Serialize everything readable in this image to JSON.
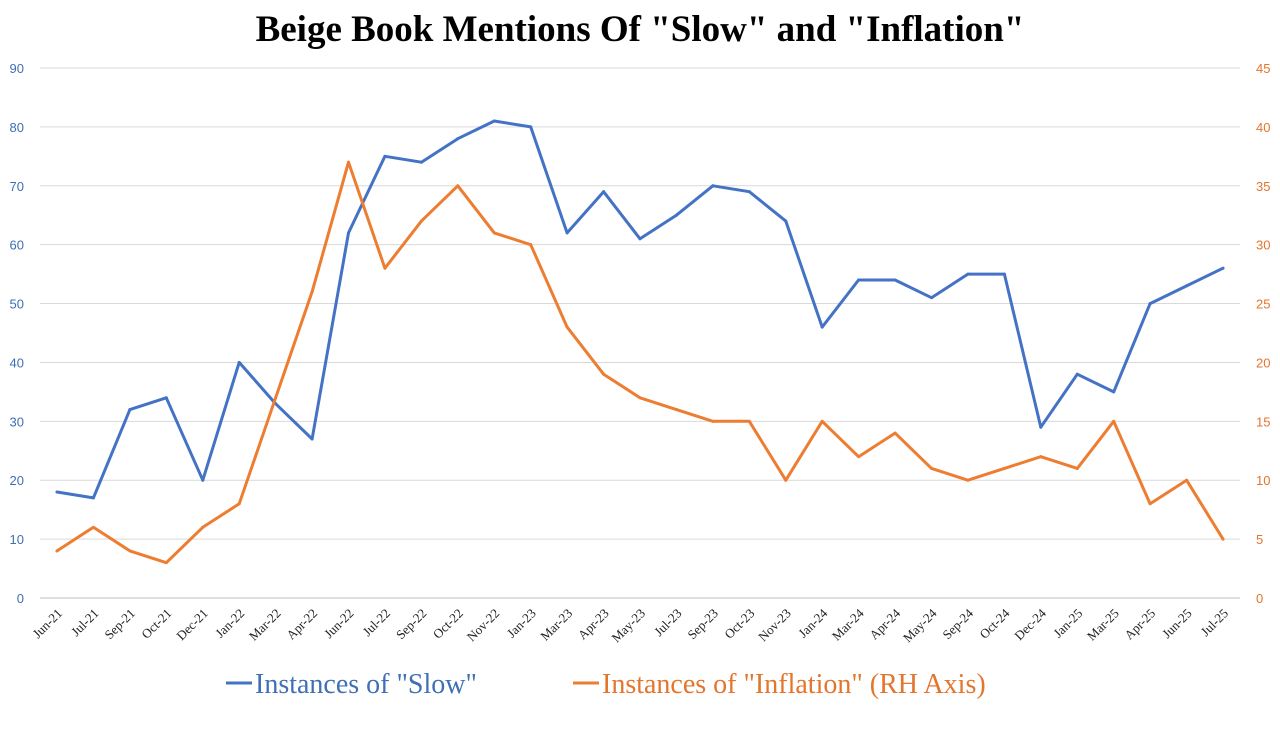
{
  "chart_data": {
    "type": "line",
    "title": "Beige Book Mentions Of \"Slow\" and \"Inflation\"",
    "categories": [
      "Jun-21",
      "Jul-21",
      "Sep-21",
      "Oct-21",
      "Dec-21",
      "Jan-22",
      "Mar-22",
      "Apr-22",
      "Jun-22",
      "Jul-22",
      "Sep-22",
      "Oct-22",
      "Nov-22",
      "Jan-23",
      "Mar-23",
      "Apr-23",
      "May-23",
      "Jul-23",
      "Sep-23",
      "Oct-23",
      "Nov-23",
      "Jan-24",
      "Mar-24",
      "Apr-24",
      "May-24",
      "Sep-24",
      "Oct-24",
      "Dec-24",
      "Jan-25",
      "Mar-25",
      "Apr-25",
      "Jun-25",
      "Jul-25"
    ],
    "left_axis": {
      "ylim": [
        0,
        90
      ],
      "ticks": [
        "0",
        "10",
        "20",
        "30",
        "40",
        "50",
        "60",
        "70",
        "80",
        "90"
      ],
      "color": "#3F6FB5"
    },
    "right_axis": {
      "ylim": [
        0,
        45
      ],
      "ticks": [
        "0",
        "5",
        "10",
        "15",
        "20",
        "25",
        "30",
        "35",
        "40",
        "45"
      ],
      "color": "#E3752C"
    },
    "grid": true,
    "series": [
      {
        "name": "Instances of \"Slow\"",
        "axis": "left",
        "color": "#4472C4",
        "values": [
          18,
          17,
          32,
          34,
          20,
          40,
          33,
          27,
          62,
          75,
          74,
          78,
          81,
          80,
          62,
          69,
          61,
          65,
          70,
          69,
          64,
          46,
          54,
          54,
          51,
          55,
          55,
          29,
          38,
          35,
          50,
          53,
          56
        ]
      },
      {
        "name": "Instances of \"Inflation\" (RH Axis)",
        "axis": "right",
        "color": "#ED7D31",
        "values": [
          4,
          6,
          4,
          3,
          6,
          8,
          17,
          26,
          37,
          28,
          32,
          35,
          31,
          30,
          23,
          19,
          17,
          16,
          15,
          15,
          10,
          15,
          12,
          14,
          11,
          10,
          11,
          12,
          11,
          15,
          8,
          10,
          5
        ]
      }
    ],
    "legend": {
      "placement": "bottom",
      "items": [
        {
          "label": "Instances of \"Slow\"",
          "color": "#3F6FB5"
        },
        {
          "label": "Instances of \"Inflation\" (RH Axis)",
          "color": "#E3752C"
        }
      ]
    }
  }
}
